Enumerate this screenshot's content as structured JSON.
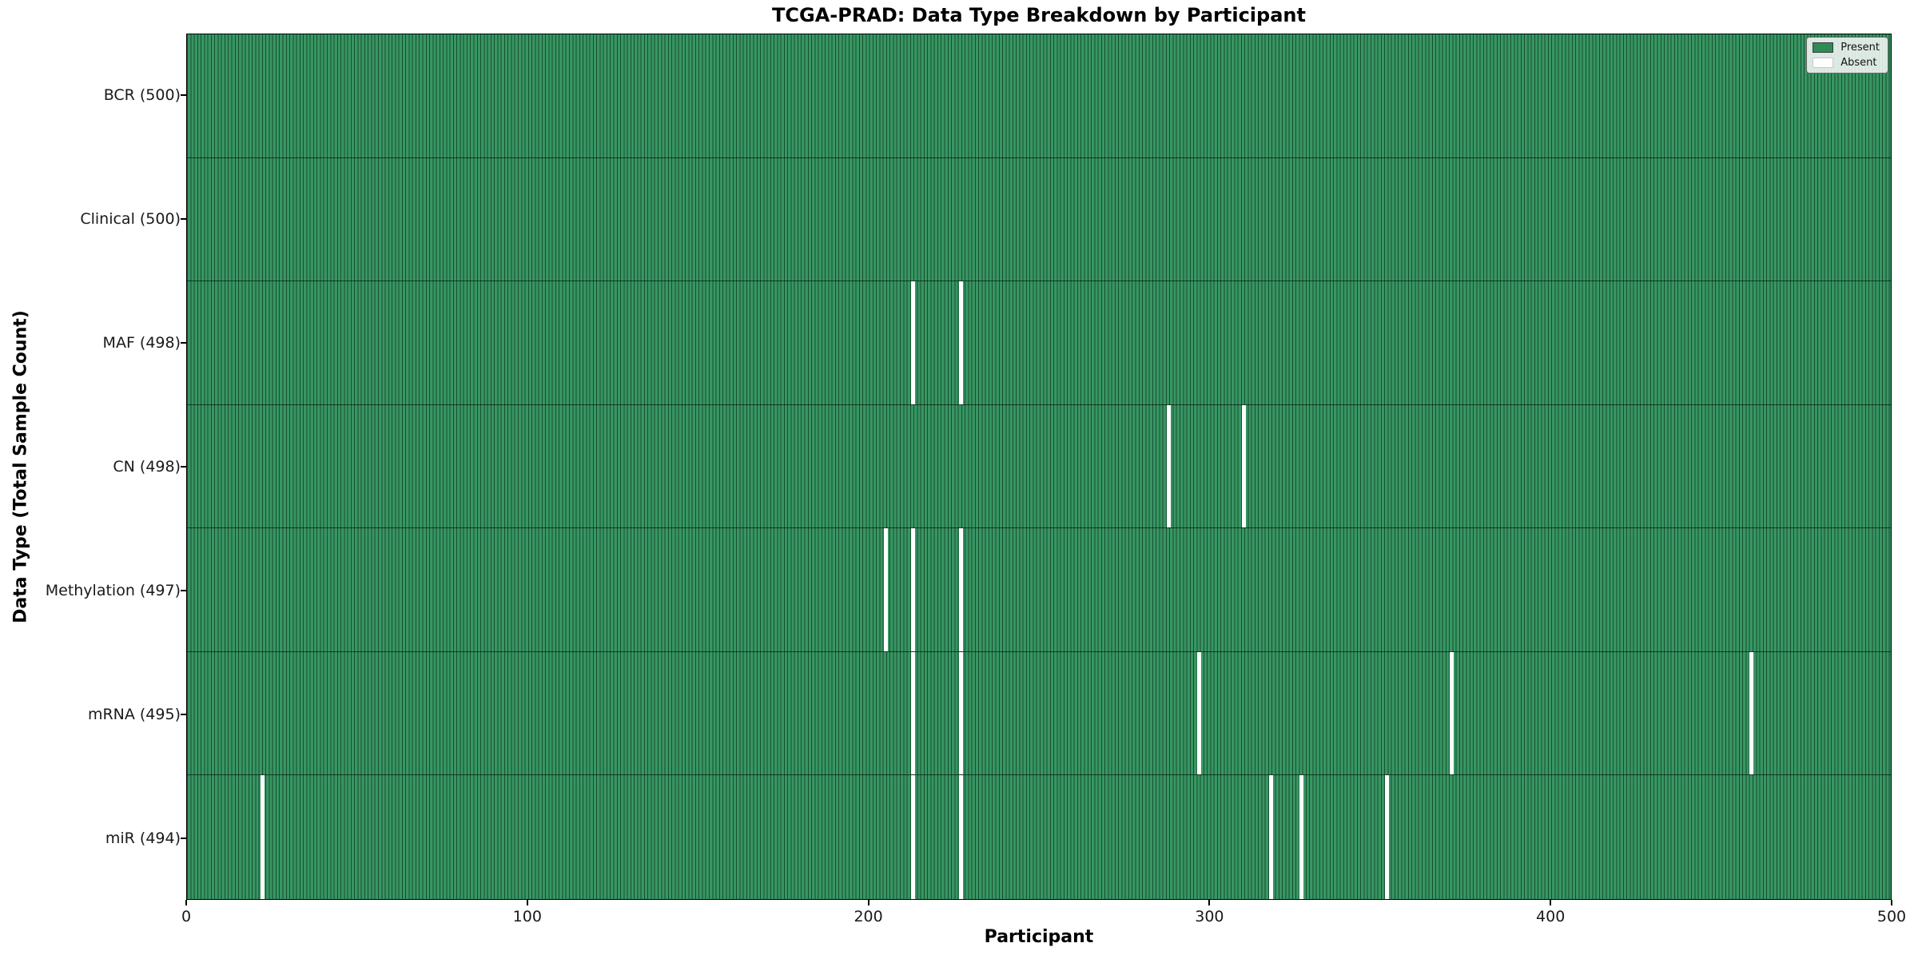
{
  "title": "TCGA-PRAD: Data Type Breakdown by Participant",
  "legend": {
    "present_label": "Present",
    "absent_label": "Absent"
  },
  "colors": {
    "present_fill": "#2e8b57",
    "present_stripe_light": "#389663",
    "bar_edge_dark": "#174f30",
    "absent_fill": "#ffffff",
    "axis_color": "#000000"
  },
  "chart_data": {
    "type": "heatmap",
    "title": "TCGA-PRAD: Data Type Breakdown by Participant",
    "xlabel": "Participant",
    "ylabel": "Data Type (Total Sample Count)",
    "legend": [
      "Present",
      "Absent"
    ],
    "legend_position": "upper right",
    "x_range": [
      0,
      500
    ],
    "x_ticks": [
      0,
      100,
      200,
      300,
      400,
      500
    ],
    "total_participants": 500,
    "rows": [
      {
        "data_type": "BCR",
        "label": "BCR (500)",
        "present_count": 500,
        "absent_count": 0,
        "absent_participants": []
      },
      {
        "data_type": "Clinical",
        "label": "Clinical (500)",
        "present_count": 500,
        "absent_count": 0,
        "absent_participants": []
      },
      {
        "data_type": "MAF",
        "label": "MAF (498)",
        "present_count": 498,
        "absent_count": 2,
        "absent_participants": [
          213,
          227
        ]
      },
      {
        "data_type": "CN",
        "label": "CN (498)",
        "present_count": 498,
        "absent_count": 2,
        "absent_participants": [
          288,
          310
        ]
      },
      {
        "data_type": "Methylation",
        "label": "Methylation (497)",
        "present_count": 497,
        "absent_count": 3,
        "absent_participants": [
          205,
          213,
          227
        ]
      },
      {
        "data_type": "mRNA",
        "label": "mRNA (495)",
        "present_count": 495,
        "absent_count": 5,
        "absent_participants": [
          213,
          227,
          297,
          371,
          459
        ]
      },
      {
        "data_type": "miR",
        "label": "miR (494)",
        "present_count": 494,
        "absent_count": 6,
        "absent_participants": [
          22,
          213,
          227,
          318,
          327,
          352
        ]
      }
    ]
  }
}
